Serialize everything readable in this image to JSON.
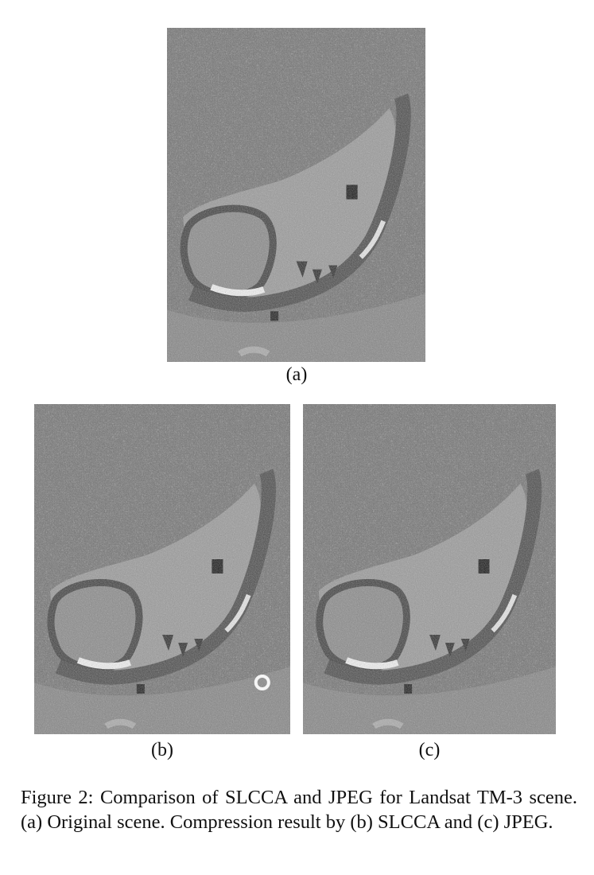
{
  "figure": {
    "panels": [
      {
        "id": "a",
        "label": "(a)",
        "description_key": "original"
      },
      {
        "id": "b",
        "label": "(b)",
        "description_key": "slcca"
      },
      {
        "id": "c",
        "label": "(c)",
        "description_key": "jpeg"
      }
    ],
    "caption": "Figure 2: Comparison of SLCCA and JPEG for Landsat TM-3 scene. (a) Original scene. Compression result by (b) SLCCA and (c) JPEG."
  },
  "colors": {
    "background": "#ffffff",
    "text": "#111111",
    "image_dark": "#2a2a2a",
    "image_mid": "#7a7a7a",
    "image_light": "#d8d8d8",
    "river": "#4a4a4a"
  }
}
